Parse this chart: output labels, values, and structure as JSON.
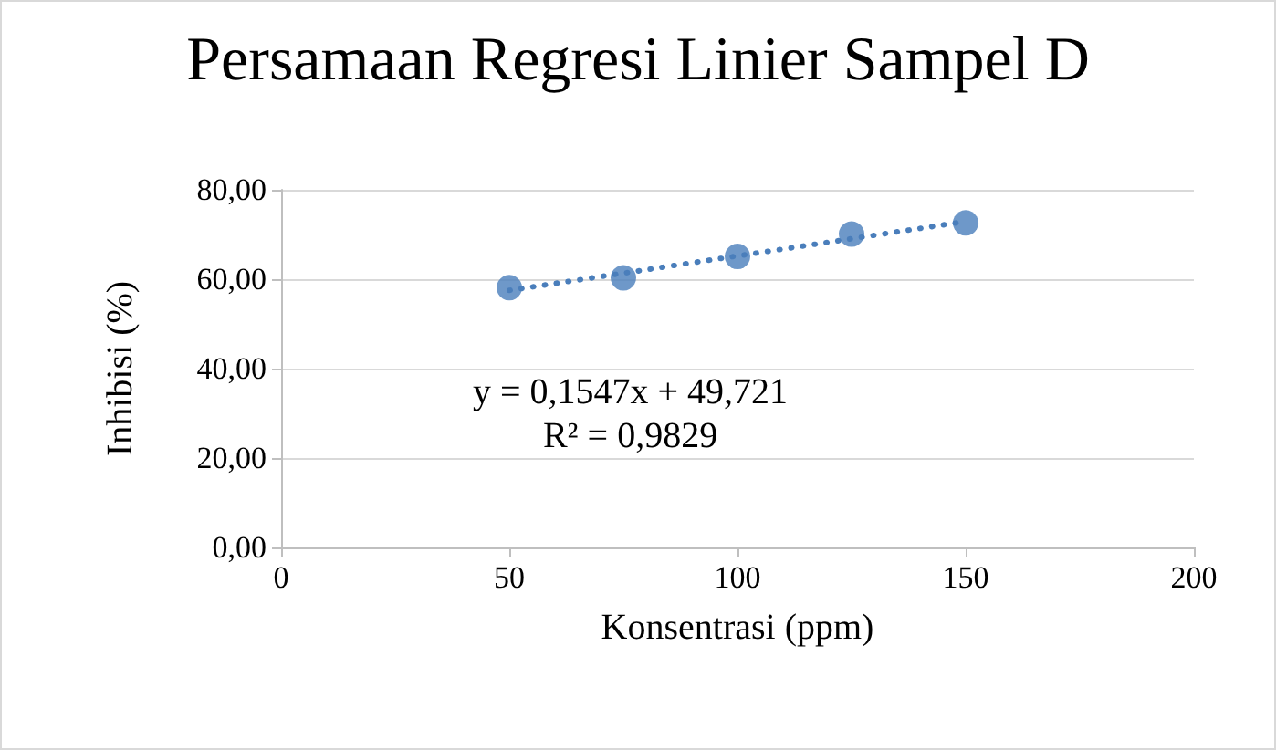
{
  "chart_data": {
    "type": "scatter",
    "title": "Persamaan Regresi Linier Sampel D",
    "xlabel": "Konsentrasi (ppm)",
    "ylabel": "Inhibisi (%)",
    "x": [
      50,
      75,
      100,
      125,
      150
    ],
    "series": [
      {
        "type": "scatter",
        "color": "#4a7ebb",
        "values": [
          58.1,
          60.3,
          65.1,
          70.1,
          72.6
        ],
        "marker": "circle"
      },
      {
        "type": "line",
        "color": "#4a7ebb",
        "x": [
          50,
          150
        ],
        "values": [
          57.5,
          72.9
        ],
        "line_style": "dotted",
        "marker": "none"
      }
    ],
    "annotations": [
      "y = 0,1547x + 49,721\nR² = 0,9829"
    ],
    "xlim": [
      0,
      200
    ],
    "xticks": [
      0,
      50,
      100,
      150,
      200
    ],
    "ylim": [
      0,
      80
    ],
    "yticks": [
      {
        "value": 0,
        "label": "0,00"
      },
      {
        "value": 20,
        "label": "20,00"
      },
      {
        "value": 40,
        "label": "40,00"
      },
      {
        "value": 60,
        "label": "60,00"
      },
      {
        "value": 80,
        "label": "80,00"
      }
    ],
    "grid": "y"
  }
}
